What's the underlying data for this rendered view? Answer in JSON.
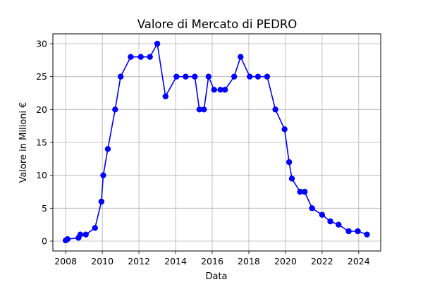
{
  "chart_data": {
    "type": "line",
    "title": "Valore di Mercato di PEDRO",
    "xlabel": "Data",
    "ylabel": "Valore in Milioni €",
    "xlim": [
      2007.3,
      2025.2
    ],
    "ylim": [
      -1.5,
      31.5
    ],
    "xticks": [
      2008,
      2010,
      2012,
      2014,
      2016,
      2018,
      2020,
      2022,
      2024
    ],
    "xtick_labels": [
      "2008",
      "2010",
      "2012",
      "2014",
      "2016",
      "2018",
      "2020",
      "2022",
      "2024"
    ],
    "yticks": [
      0,
      5,
      10,
      15,
      20,
      25,
      30
    ],
    "ytick_labels": [
      "0",
      "5",
      "10",
      "15",
      "20",
      "25",
      "30"
    ],
    "grid": true,
    "series": [
      {
        "color": "#0000ff",
        "marker": "circle",
        "x": [
          2008.0,
          2008.1,
          2008.7,
          2008.8,
          2009.1,
          2009.6,
          2009.95,
          2010.05,
          2010.3,
          2010.7,
          2011.0,
          2011.55,
          2012.1,
          2012.6,
          2013.0,
          2013.45,
          2014.05,
          2014.55,
          2015.05,
          2015.3,
          2015.55,
          2015.8,
          2016.1,
          2016.45,
          2016.7,
          2017.2,
          2017.55,
          2018.05,
          2018.5,
          2019.0,
          2019.45,
          2019.95,
          2020.2,
          2020.35,
          2020.8,
          2021.05,
          2021.45,
          2022.0,
          2022.45,
          2022.9,
          2023.45,
          2023.95,
          2024.45
        ],
        "y": [
          0.1,
          0.3,
          0.5,
          1.0,
          1.0,
          2.0,
          6.0,
          10.0,
          14.0,
          20.0,
          25.0,
          28.0,
          28.0,
          28.0,
          30.0,
          22.0,
          25.0,
          25.0,
          25.0,
          20.0,
          20.0,
          25.0,
          23.0,
          23.0,
          23.0,
          25.0,
          28.0,
          25.0,
          25.0,
          25.0,
          20.0,
          17.0,
          12.0,
          9.5,
          7.5,
          7.5,
          5.0,
          4.0,
          3.0,
          2.5,
          1.5,
          1.5,
          1.0
        ]
      }
    ]
  }
}
